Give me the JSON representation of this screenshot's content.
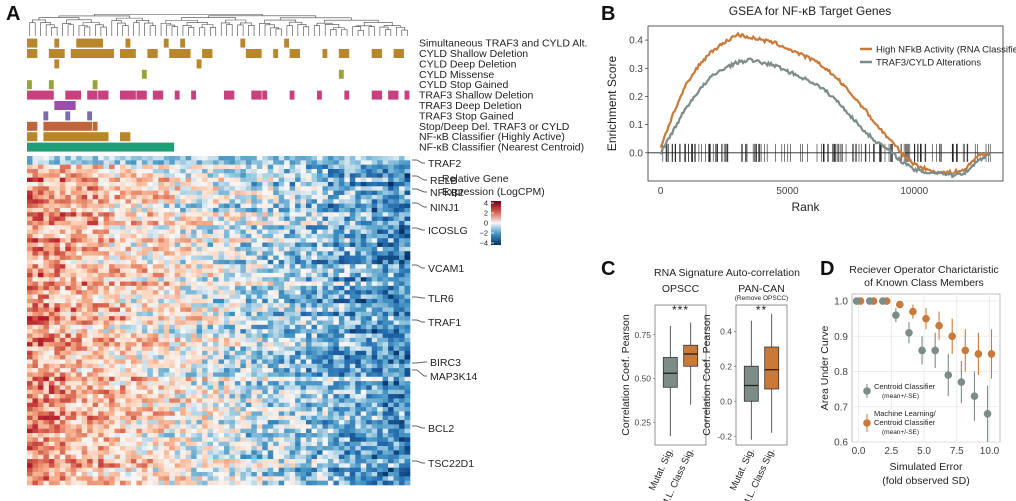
{
  "panels": {
    "a": "A",
    "b": "B",
    "c": "C",
    "d": "D"
  },
  "colors": {
    "gold": "#b8862b",
    "olive": "#9aa33a",
    "magenta": "#c8407e",
    "purple": "#9c4ea8",
    "violet": "#7c6bb0",
    "rust": "#c0643a",
    "green": "#1f9e78",
    "orange": "#c97a3a",
    "grey": "#7c8c86"
  },
  "heatmap": {
    "track_labels": [
      "Simultaneous TRAF3 and CYLD Alt.",
      "CYLD Shallow Deletion",
      "CYLD Deep Deletion",
      "CYLD Missense",
      "CYLD Stop Gained",
      "TRAF3 Shallow Deletion",
      "TRAF3 Deep Deletion",
      "TRAF3 Stop Gained",
      "Stop/Deep Del. TRAF3 or CYLD",
      "NF-κB Classifier (Highly Active)",
      "NF-κB Classifier (Nearest Centroid)"
    ],
    "gene_labels": [
      "TRAF2",
      "RELB",
      "NFKB2",
      "NINJ1",
      "ICOSLG",
      "VCAM1",
      "TLR6",
      "TRAF1",
      "BIRC3",
      "MAP3K14",
      "BCL2",
      "TSC22D1"
    ],
    "legend_title_1": "Relative Gene",
    "legend_title_2": "Expression (LogCPM)",
    "legend_ticks": [
      "4",
      "2",
      "0",
      "−2",
      "−4"
    ]
  },
  "chart_data": [
    {
      "type": "line",
      "title": "GSEA for NF-κB Target Genes",
      "xlabel": "Rank",
      "ylabel": "Enrichment Score",
      "xlim": [
        -500,
        13500
      ],
      "ylim": [
        -0.1,
        0.45
      ],
      "x_ticks": [
        "0",
        "5000",
        "10000"
      ],
      "y_ticks": [
        "0.4",
        "0.3",
        "0.2",
        "0.1",
        "0.0"
      ],
      "legend_position": "top-right",
      "series": [
        {
          "name": "High NFkB Activity (RNA Classifier)",
          "color": "#c97a3a",
          "x": [
            0,
            500,
            1000,
            1500,
            2000,
            2500,
            3000,
            3500,
            4000,
            4500,
            5000,
            5500,
            6000,
            6500,
            7000,
            7500,
            8000,
            8500,
            9000,
            9500,
            10000,
            10500,
            11000,
            11500,
            12000,
            12500,
            13000
          ],
          "y": [
            0.02,
            0.14,
            0.24,
            0.31,
            0.36,
            0.39,
            0.42,
            0.41,
            0.4,
            0.39,
            0.37,
            0.35,
            0.33,
            0.3,
            0.26,
            0.21,
            0.16,
            0.1,
            0.05,
            0.0,
            -0.04,
            -0.06,
            -0.07,
            -0.07,
            -0.06,
            -0.01,
            0.0
          ]
        },
        {
          "name": "TRAF3/CYLD Alterations",
          "color": "#7c8c86",
          "x": [
            0,
            500,
            1000,
            1500,
            2000,
            2500,
            3000,
            3500,
            4000,
            4500,
            5000,
            5500,
            6000,
            6500,
            7000,
            7500,
            8000,
            8500,
            9000,
            9500,
            10000,
            10500,
            11000,
            11500,
            12000,
            12500,
            13000
          ],
          "y": [
            0.0,
            0.08,
            0.16,
            0.22,
            0.27,
            0.3,
            0.32,
            0.33,
            0.32,
            0.31,
            0.29,
            0.27,
            0.25,
            0.22,
            0.18,
            0.13,
            0.08,
            0.04,
            0.01,
            -0.03,
            -0.06,
            -0.07,
            -0.07,
            -0.08,
            -0.07,
            -0.03,
            0.0
          ]
        }
      ]
    },
    {
      "type": "box",
      "title": "RNA Signature Auto-correlation",
      "ylabel": "Correlation Coef. Pearson",
      "categories": [
        "Mutat. Sig.",
        "M.L. Class Sig."
      ],
      "groups": [
        {
          "name": "OPSCC",
          "significance": "***",
          "ylim": [
            0.12,
            0.92
          ],
          "y_ticks": [
            "0.75",
            "0.50",
            "0.25"
          ],
          "boxes": [
            {
              "min": 0.17,
              "q1": 0.45,
              "median": 0.53,
              "q3": 0.62,
              "max": 0.8,
              "color": "#7c8c86"
            },
            {
              "min": 0.35,
              "q1": 0.57,
              "median": 0.64,
              "q3": 0.69,
              "max": 0.82,
              "color": "#c97a3a"
            }
          ]
        },
        {
          "name": "PAN-CAN",
          "subtitle": "(Remove OPSCC)",
          "significance": "**",
          "ylim": [
            -0.25,
            0.55
          ],
          "y_ticks": [
            "0.4",
            "0.2",
            "0.0",
            "-0.2"
          ],
          "boxes": [
            {
              "min": -0.22,
              "q1": 0.0,
              "median": 0.09,
              "q3": 0.2,
              "max": 0.46,
              "color": "#7c8c86"
            },
            {
              "min": -0.18,
              "q1": 0.07,
              "median": 0.18,
              "q3": 0.31,
              "max": 0.5,
              "color": "#c97a3a"
            }
          ]
        }
      ]
    },
    {
      "type": "scatter",
      "title_1": "Reciever Operator Charictaristic",
      "title_2": "of Known Class Members",
      "xlabel_1": "Simulated Error",
      "xlabel_2": "(fold observed SD)",
      "ylabel": "Area Under Curve",
      "xlim": [
        -0.5,
        10.8
      ],
      "ylim": [
        0.6,
        1.02
      ],
      "x_ticks": [
        "0.0",
        "2.5",
        "5.0",
        "7.5",
        "10.0"
      ],
      "y_ticks": [
        "1.0",
        "0.9",
        "0.8",
        "0.7",
        "0.6"
      ],
      "series": [
        {
          "name_1": "Centroid Classifier",
          "name_2": "(mean+/-SE)",
          "color": "#7c8c86",
          "x": [
            0,
            1,
            2,
            3,
            4,
            5,
            6,
            7,
            8,
            9,
            10
          ],
          "y": [
            1.0,
            1.0,
            1.0,
            0.96,
            0.91,
            0.86,
            0.86,
            0.79,
            0.77,
            0.73,
            0.68
          ],
          "se": [
            0,
            0,
            0,
            0.02,
            0.03,
            0.04,
            0.05,
            0.06,
            0.06,
            0.07,
            0.08
          ]
        },
        {
          "name_1": "Machine Learning/",
          "name_2": "Centroid Classifier",
          "name_3": "(mean+/-SE)",
          "color": "#c97a3a",
          "x": [
            0,
            1,
            2,
            3,
            4,
            5,
            6,
            7,
            8,
            9,
            10
          ],
          "y": [
            1.0,
            1.0,
            1.0,
            0.99,
            0.97,
            0.95,
            0.93,
            0.9,
            0.86,
            0.85,
            0.85
          ],
          "se": [
            0,
            0,
            0,
            0.01,
            0.02,
            0.03,
            0.04,
            0.05,
            0.06,
            0.06,
            0.07
          ]
        }
      ]
    }
  ]
}
